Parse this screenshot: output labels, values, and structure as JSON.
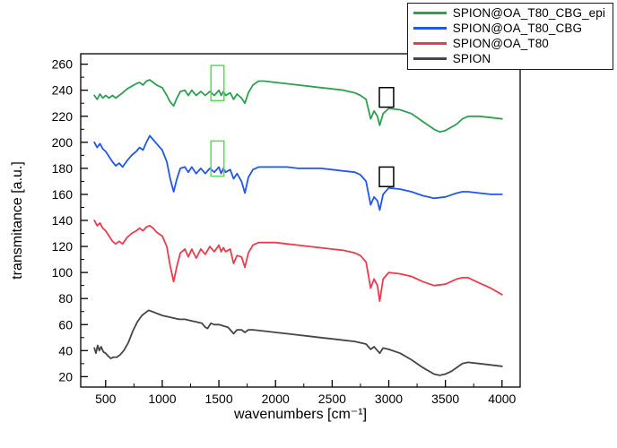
{
  "figure": {
    "x_label": "wavenumbers [cm⁻¹]",
    "y_label": "transmitance [a.u.]"
  },
  "chart_data": {
    "type": "line",
    "title": "",
    "xlabel": "wavenumbers [cm⁻¹]",
    "ylabel": "transmitance [a.u.]",
    "xlim": [
      280,
      4160
    ],
    "ylim": [
      12,
      268
    ],
    "x_ticks": [
      500,
      1000,
      1500,
      2000,
      2500,
      3000,
      3500,
      4000
    ],
    "y_ticks": [
      20,
      40,
      60,
      80,
      100,
      120,
      140,
      160,
      180,
      200,
      220,
      240,
      260
    ],
    "x_minor_step": 250,
    "y_minor_step": 10,
    "grid": false,
    "legend_position": "top-right",
    "series": [
      {
        "name": "SPION@OA_T80_CBG_epi",
        "color": "#2fa052",
        "points": [
          [
            400,
            236
          ],
          [
            425,
            233
          ],
          [
            450,
            237
          ],
          [
            475,
            234
          ],
          [
            500,
            236
          ],
          [
            530,
            234
          ],
          [
            560,
            236
          ],
          [
            590,
            234
          ],
          [
            620,
            236
          ],
          [
            650,
            238
          ],
          [
            690,
            241
          ],
          [
            730,
            243
          ],
          [
            770,
            245
          ],
          [
            800,
            246
          ],
          [
            830,
            244
          ],
          [
            860,
            247
          ],
          [
            890,
            248
          ],
          [
            920,
            246
          ],
          [
            950,
            244
          ],
          [
            1000,
            242
          ],
          [
            1040,
            236
          ],
          [
            1070,
            231
          ],
          [
            1100,
            228
          ],
          [
            1130,
            234
          ],
          [
            1160,
            239
          ],
          [
            1200,
            240
          ],
          [
            1230,
            236
          ],
          [
            1260,
            240
          ],
          [
            1300,
            236
          ],
          [
            1340,
            239
          ],
          [
            1380,
            236
          ],
          [
            1420,
            239
          ],
          [
            1460,
            236
          ],
          [
            1500,
            240
          ],
          [
            1520,
            236
          ],
          [
            1540,
            239
          ],
          [
            1560,
            236
          ],
          [
            1600,
            238
          ],
          [
            1630,
            233
          ],
          [
            1660,
            237
          ],
          [
            1700,
            234
          ],
          [
            1730,
            230
          ],
          [
            1760,
            238
          ],
          [
            1800,
            244
          ],
          [
            1850,
            247
          ],
          [
            1900,
            247
          ],
          [
            2000,
            246
          ],
          [
            2100,
            245
          ],
          [
            2200,
            244
          ],
          [
            2300,
            243
          ],
          [
            2400,
            242
          ],
          [
            2500,
            241
          ],
          [
            2600,
            240
          ],
          [
            2700,
            238
          ],
          [
            2750,
            236
          ],
          [
            2800,
            233
          ],
          [
            2840,
            218
          ],
          [
            2870,
            224
          ],
          [
            2900,
            220
          ],
          [
            2920,
            213
          ],
          [
            2950,
            222
          ],
          [
            3000,
            226
          ],
          [
            3100,
            225
          ],
          [
            3200,
            222
          ],
          [
            3300,
            216
          ],
          [
            3400,
            210
          ],
          [
            3450,
            208
          ],
          [
            3500,
            209
          ],
          [
            3600,
            214
          ],
          [
            3650,
            218
          ],
          [
            3700,
            220
          ],
          [
            3800,
            220
          ],
          [
            3900,
            219
          ],
          [
            4000,
            218
          ]
        ]
      },
      {
        "name": "SPION@OA_T80_CBG",
        "color": "#2257e7",
        "points": [
          [
            400,
            200
          ],
          [
            425,
            196
          ],
          [
            450,
            199
          ],
          [
            475,
            195
          ],
          [
            500,
            193
          ],
          [
            530,
            189
          ],
          [
            560,
            185
          ],
          [
            590,
            182
          ],
          [
            620,
            184
          ],
          [
            650,
            181
          ],
          [
            690,
            186
          ],
          [
            730,
            190
          ],
          [
            770,
            193
          ],
          [
            800,
            196
          ],
          [
            830,
            194
          ],
          [
            860,
            200
          ],
          [
            890,
            205
          ],
          [
            920,
            202
          ],
          [
            950,
            199
          ],
          [
            1000,
            194
          ],
          [
            1040,
            185
          ],
          [
            1070,
            172
          ],
          [
            1100,
            162
          ],
          [
            1130,
            172
          ],
          [
            1160,
            180
          ],
          [
            1200,
            181
          ],
          [
            1230,
            177
          ],
          [
            1260,
            181
          ],
          [
            1300,
            176
          ],
          [
            1340,
            180
          ],
          [
            1380,
            176
          ],
          [
            1420,
            180
          ],
          [
            1460,
            177
          ],
          [
            1500,
            181
          ],
          [
            1520,
            176
          ],
          [
            1540,
            180
          ],
          [
            1560,
            177
          ],
          [
            1600,
            179
          ],
          [
            1630,
            172
          ],
          [
            1660,
            176
          ],
          [
            1700,
            170
          ],
          [
            1730,
            161
          ],
          [
            1760,
            173
          ],
          [
            1800,
            179
          ],
          [
            1850,
            181
          ],
          [
            1900,
            181
          ],
          [
            2000,
            181
          ],
          [
            2100,
            181
          ],
          [
            2200,
            180
          ],
          [
            2300,
            180
          ],
          [
            2400,
            180
          ],
          [
            2500,
            179
          ],
          [
            2600,
            178
          ],
          [
            2700,
            177
          ],
          [
            2750,
            175
          ],
          [
            2800,
            170
          ],
          [
            2840,
            152
          ],
          [
            2870,
            158
          ],
          [
            2900,
            155
          ],
          [
            2920,
            148
          ],
          [
            2950,
            160
          ],
          [
            3000,
            165
          ],
          [
            3100,
            164
          ],
          [
            3200,
            162
          ],
          [
            3300,
            159
          ],
          [
            3400,
            157
          ],
          [
            3500,
            158
          ],
          [
            3600,
            161
          ],
          [
            3650,
            162
          ],
          [
            3700,
            162
          ],
          [
            3800,
            161
          ],
          [
            3900,
            160
          ],
          [
            4000,
            160
          ]
        ]
      },
      {
        "name": "SPION@OA_T80",
        "color": "#ec3b4e",
        "points": [
          [
            400,
            140
          ],
          [
            425,
            136
          ],
          [
            450,
            138
          ],
          [
            475,
            134
          ],
          [
            500,
            132
          ],
          [
            530,
            128
          ],
          [
            560,
            124
          ],
          [
            590,
            122
          ],
          [
            620,
            124
          ],
          [
            650,
            122
          ],
          [
            690,
            127
          ],
          [
            730,
            130
          ],
          [
            770,
            132
          ],
          [
            800,
            134
          ],
          [
            830,
            132
          ],
          [
            860,
            135
          ],
          [
            890,
            136
          ],
          [
            920,
            134
          ],
          [
            950,
            131
          ],
          [
            1000,
            128
          ],
          [
            1040,
            120
          ],
          [
            1070,
            105
          ],
          [
            1100,
            93
          ],
          [
            1130,
            105
          ],
          [
            1160,
            115
          ],
          [
            1200,
            118
          ],
          [
            1230,
            112
          ],
          [
            1260,
            118
          ],
          [
            1300,
            111
          ],
          [
            1340,
            118
          ],
          [
            1380,
            114
          ],
          [
            1420,
            120
          ],
          [
            1460,
            116
          ],
          [
            1500,
            121
          ],
          [
            1520,
            116
          ],
          [
            1540,
            119
          ],
          [
            1560,
            116
          ],
          [
            1600,
            118
          ],
          [
            1630,
            107
          ],
          [
            1660,
            113
          ],
          [
            1700,
            112
          ],
          [
            1730,
            104
          ],
          [
            1760,
            115
          ],
          [
            1800,
            121
          ],
          [
            1850,
            123
          ],
          [
            1900,
            123
          ],
          [
            2000,
            123
          ],
          [
            2100,
            122
          ],
          [
            2200,
            121
          ],
          [
            2300,
            120
          ],
          [
            2400,
            119
          ],
          [
            2500,
            118
          ],
          [
            2600,
            117
          ],
          [
            2700,
            115
          ],
          [
            2750,
            113
          ],
          [
            2800,
            108
          ],
          [
            2840,
            88
          ],
          [
            2870,
            95
          ],
          [
            2900,
            90
          ],
          [
            2920,
            78
          ],
          [
            2950,
            95
          ],
          [
            3000,
            100
          ],
          [
            3100,
            99
          ],
          [
            3200,
            97
          ],
          [
            3300,
            93
          ],
          [
            3400,
            90
          ],
          [
            3500,
            91
          ],
          [
            3600,
            95
          ],
          [
            3650,
            96
          ],
          [
            3700,
            96
          ],
          [
            3800,
            92
          ],
          [
            3900,
            88
          ],
          [
            4000,
            83
          ]
        ]
      },
      {
        "name": "SPION",
        "color": "#464646",
        "points": [
          [
            400,
            42
          ],
          [
            415,
            38
          ],
          [
            430,
            44
          ],
          [
            445,
            40
          ],
          [
            460,
            43
          ],
          [
            480,
            39
          ],
          [
            500,
            38
          ],
          [
            520,
            36
          ],
          [
            545,
            34
          ],
          [
            570,
            35
          ],
          [
            600,
            35
          ],
          [
            630,
            37
          ],
          [
            660,
            40
          ],
          [
            700,
            46
          ],
          [
            740,
            55
          ],
          [
            780,
            62
          ],
          [
            820,
            67
          ],
          [
            850,
            69
          ],
          [
            880,
            71
          ],
          [
            910,
            70
          ],
          [
            940,
            69
          ],
          [
            970,
            68
          ],
          [
            1000,
            67
          ],
          [
            1050,
            66
          ],
          [
            1100,
            65
          ],
          [
            1150,
            64
          ],
          [
            1200,
            64
          ],
          [
            1250,
            63
          ],
          [
            1300,
            62
          ],
          [
            1350,
            61
          ],
          [
            1380,
            58
          ],
          [
            1400,
            57
          ],
          [
            1430,
            61
          ],
          [
            1460,
            60
          ],
          [
            1500,
            60
          ],
          [
            1540,
            59
          ],
          [
            1580,
            58
          ],
          [
            1610,
            55
          ],
          [
            1630,
            53
          ],
          [
            1660,
            56
          ],
          [
            1700,
            56
          ],
          [
            1730,
            54
          ],
          [
            1760,
            56
          ],
          [
            1800,
            56
          ],
          [
            1900,
            55
          ],
          [
            2000,
            54
          ],
          [
            2100,
            53
          ],
          [
            2200,
            52
          ],
          [
            2300,
            51
          ],
          [
            2400,
            50
          ],
          [
            2500,
            49
          ],
          [
            2600,
            48
          ],
          [
            2700,
            47
          ],
          [
            2800,
            45
          ],
          [
            2840,
            41
          ],
          [
            2870,
            43
          ],
          [
            2900,
            40
          ],
          [
            2920,
            38
          ],
          [
            2950,
            42
          ],
          [
            3000,
            41
          ],
          [
            3100,
            38
          ],
          [
            3200,
            33
          ],
          [
            3300,
            27
          ],
          [
            3400,
            22
          ],
          [
            3450,
            21
          ],
          [
            3500,
            22
          ],
          [
            3550,
            24
          ],
          [
            3600,
            27
          ],
          [
            3650,
            30
          ],
          [
            3700,
            31
          ],
          [
            3800,
            30
          ],
          [
            3900,
            29
          ],
          [
            4000,
            28
          ]
        ]
      }
    ],
    "annotations": [
      {
        "name": "highlight-box-green-epi-1500",
        "color": "#55dd55",
        "x0": 1430,
        "x1": 1545,
        "y0": 232,
        "y1": 259
      },
      {
        "name": "highlight-box-green-cbg-1500",
        "color": "#55dd55",
        "x0": 1430,
        "x1": 1545,
        "y0": 174,
        "y1": 201
      },
      {
        "name": "highlight-box-black-epi-3000",
        "color": "#000000",
        "x0": 2917,
        "x1": 3043,
        "y0": 227,
        "y1": 242
      },
      {
        "name": "highlight-box-black-cbg-3000",
        "color": "#000000",
        "x0": 2917,
        "x1": 3043,
        "y0": 166,
        "y1": 181
      }
    ]
  }
}
